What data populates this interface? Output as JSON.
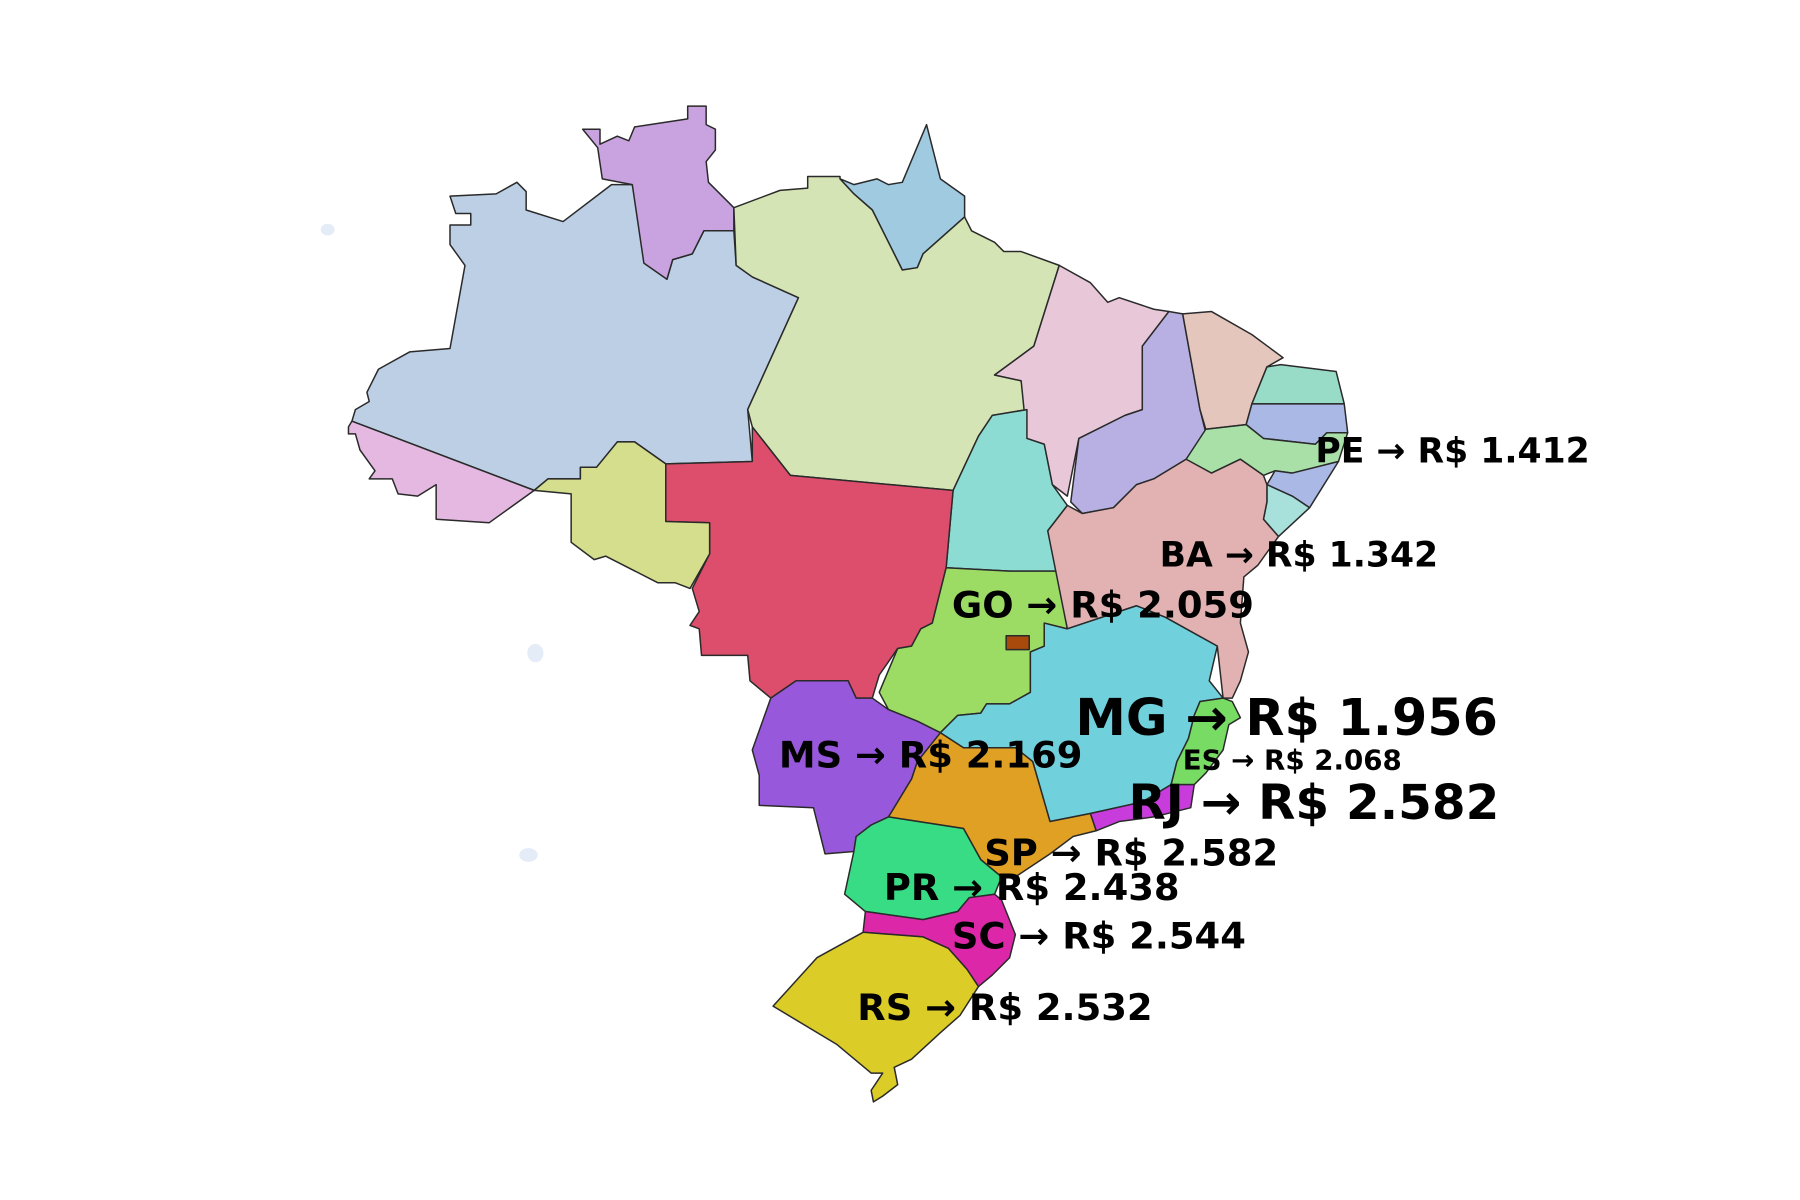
{
  "map": {
    "states": [
      {
        "code": "AM",
        "color": "#bccfe5"
      },
      {
        "code": "RR",
        "color": "#c9a3e0"
      },
      {
        "code": "AP",
        "color": "#9fcae0"
      },
      {
        "code": "PA",
        "color": "#d4e4b4"
      },
      {
        "code": "MA",
        "color": "#e8c8d8"
      },
      {
        "code": "PI",
        "color": "#b8b0e2"
      },
      {
        "code": "CE",
        "color": "#e4c6bc"
      },
      {
        "code": "RN",
        "color": "#98dcc8"
      },
      {
        "code": "PB",
        "color": "#aab8e6"
      },
      {
        "code": "PE",
        "color": "#a8e0a8"
      },
      {
        "code": "AL",
        "color": "#aab8e6"
      },
      {
        "code": "SE",
        "color": "#a8e0dc"
      },
      {
        "code": "BA",
        "color": "#e2b2b2"
      },
      {
        "code": "TO",
        "color": "#8cdcd4"
      },
      {
        "code": "MT",
        "color": "#dc4e6c"
      },
      {
        "code": "RO",
        "color": "#d4de8c"
      },
      {
        "code": "AC",
        "color": "#e4b8e0"
      },
      {
        "code": "GO",
        "color": "#9cdc64"
      },
      {
        "code": "DF",
        "color": "#a84a0c"
      },
      {
        "code": "MG",
        "color": "#70d0dc"
      },
      {
        "code": "ES",
        "color": "#78dc64"
      },
      {
        "code": "RJ",
        "color": "#c83cdc"
      },
      {
        "code": "SP",
        "color": "#e0a024"
      },
      {
        "code": "MS",
        "color": "#9858dc"
      },
      {
        "code": "PR",
        "color": "#38dc84"
      },
      {
        "code": "SC",
        "color": "#dc28a8"
      },
      {
        "code": "RS",
        "color": "#dccc28"
      }
    ],
    "labels": [
      {
        "code": "PE",
        "text": "PE → R$ 1.412"
      },
      {
        "code": "BA",
        "text": "BA → R$ 1.342"
      },
      {
        "code": "GO",
        "text": "GO → R$ 2.059"
      },
      {
        "code": "MG",
        "text": "MG → R$ 1.956"
      },
      {
        "code": "ES",
        "text": "ES → R$ 2.068"
      },
      {
        "code": "RJ",
        "text": "RJ → R$ 2.582"
      },
      {
        "code": "MS",
        "text": "MS → R$ 2.169"
      },
      {
        "code": "SP",
        "text": "SP → R$ 2.582"
      },
      {
        "code": "PR",
        "text": "PR → R$ 2.438"
      },
      {
        "code": "SC",
        "text": "SC → R$ 2.544"
      },
      {
        "code": "RS",
        "text": "RS → R$ 2.532"
      }
    ]
  }
}
